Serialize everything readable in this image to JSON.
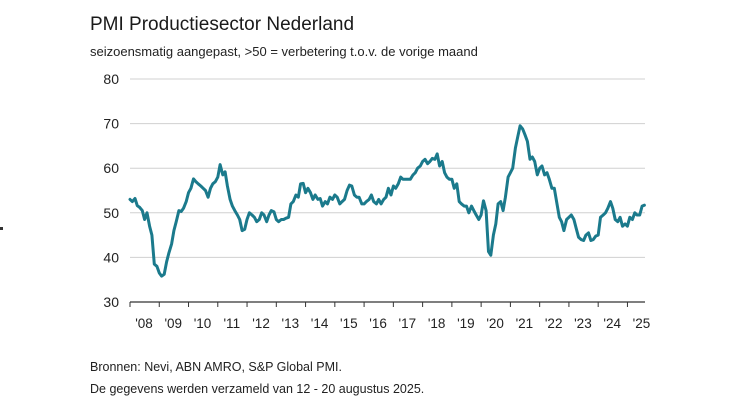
{
  "header": {
    "title": "PMI Productiesector Nederland",
    "subtitle": "seizoensmatig aangepast, >50 = verbetering t.o.v. de vorige maand"
  },
  "footer": {
    "sources": "Bronnen: Nevi, ABN AMRO, S&P Global PMI.",
    "collected": "De gegevens werden verzameld van 12 - 20  augustus  2025."
  },
  "colors": {
    "line": "#1b7a8c",
    "grid": "#d0d0d0",
    "axis": "#333333"
  },
  "chart_data": {
    "type": "line",
    "title": "PMI Productiesector Nederland",
    "subtitle": "seizoensmatig aangepast, >50 = verbetering t.o.v. de vorige maand",
    "ylim": [
      30,
      80
    ],
    "yticks": [
      30,
      40,
      50,
      60,
      70,
      80
    ],
    "xlim": [
      2008.0,
      2025.6
    ],
    "xticks": [
      {
        "x": 2008,
        "label": "'08"
      },
      {
        "x": 2009,
        "label": "'09"
      },
      {
        "x": 2010,
        "label": "'10"
      },
      {
        "x": 2011,
        "label": "'11"
      },
      {
        "x": 2012,
        "label": "'12"
      },
      {
        "x": 2013,
        "label": "'13"
      },
      {
        "x": 2014,
        "label": "'14"
      },
      {
        "x": 2015,
        "label": "'15"
      },
      {
        "x": 2016,
        "label": "'16"
      },
      {
        "x": 2017,
        "label": "'17"
      },
      {
        "x": 2018,
        "label": "'18"
      },
      {
        "x": 2019,
        "label": "'19"
      },
      {
        "x": 2020,
        "label": "'20"
      },
      {
        "x": 2021,
        "label": "'21"
      },
      {
        "x": 2022,
        "label": "'22"
      },
      {
        "x": 2023,
        "label": "'23"
      },
      {
        "x": 2024,
        "label": "'24"
      },
      {
        "x": 2025,
        "label": "'25"
      }
    ],
    "grid": true,
    "series": [
      {
        "points": [
          [
            2008.0,
            53.0
          ],
          [
            2008.08,
            52.5
          ],
          [
            2008.17,
            53.2
          ],
          [
            2008.25,
            51.6
          ],
          [
            2008.33,
            51.2
          ],
          [
            2008.42,
            50.5
          ],
          [
            2008.5,
            48.5
          ],
          [
            2008.58,
            50.0
          ],
          [
            2008.67,
            47.0
          ],
          [
            2008.75,
            45.0
          ],
          [
            2008.83,
            38.5
          ],
          [
            2008.92,
            38.0
          ],
          [
            2009.0,
            36.5
          ],
          [
            2009.08,
            35.8
          ],
          [
            2009.17,
            36.2
          ],
          [
            2009.25,
            39.0
          ],
          [
            2009.33,
            41.0
          ],
          [
            2009.42,
            43.0
          ],
          [
            2009.5,
            46.0
          ],
          [
            2009.58,
            48.0
          ],
          [
            2009.67,
            50.5
          ],
          [
            2009.75,
            50.3
          ],
          [
            2009.83,
            51.0
          ],
          [
            2009.92,
            52.5
          ],
          [
            2010.0,
            54.5
          ],
          [
            2010.08,
            55.5
          ],
          [
            2010.17,
            57.6
          ],
          [
            2010.25,
            57.0
          ],
          [
            2010.33,
            56.5
          ],
          [
            2010.42,
            56.0
          ],
          [
            2010.5,
            55.5
          ],
          [
            2010.58,
            55.0
          ],
          [
            2010.67,
            53.5
          ],
          [
            2010.75,
            55.5
          ],
          [
            2010.83,
            56.5
          ],
          [
            2010.92,
            57.0
          ],
          [
            2011.0,
            58.0
          ],
          [
            2011.08,
            60.8
          ],
          [
            2011.17,
            58.5
          ],
          [
            2011.25,
            59.2
          ],
          [
            2011.33,
            56.0
          ],
          [
            2011.42,
            53.0
          ],
          [
            2011.5,
            51.5
          ],
          [
            2011.58,
            50.5
          ],
          [
            2011.67,
            49.5
          ],
          [
            2011.75,
            48.5
          ],
          [
            2011.83,
            46.0
          ],
          [
            2011.92,
            46.3
          ],
          [
            2012.0,
            48.5
          ],
          [
            2012.08,
            50.0
          ],
          [
            2012.17,
            49.5
          ],
          [
            2012.25,
            49.0
          ],
          [
            2012.33,
            48.0
          ],
          [
            2012.42,
            48.5
          ],
          [
            2012.5,
            50.0
          ],
          [
            2012.58,
            49.5
          ],
          [
            2012.67,
            48.0
          ],
          [
            2012.75,
            49.5
          ],
          [
            2012.83,
            50.5
          ],
          [
            2012.92,
            50.2
          ],
          [
            2013.0,
            48.5
          ],
          [
            2013.08,
            48.0
          ],
          [
            2013.17,
            48.5
          ],
          [
            2013.25,
            48.5
          ],
          [
            2013.33,
            48.8
          ],
          [
            2013.42,
            49.0
          ],
          [
            2013.5,
            52.0
          ],
          [
            2013.58,
            52.5
          ],
          [
            2013.67,
            54.0
          ],
          [
            2013.75,
            53.5
          ],
          [
            2013.83,
            56.5
          ],
          [
            2013.92,
            56.6
          ],
          [
            2014.0,
            54.5
          ],
          [
            2014.08,
            55.5
          ],
          [
            2014.17,
            54.5
          ],
          [
            2014.25,
            53.0
          ],
          [
            2014.33,
            54.0
          ],
          [
            2014.42,
            53.0
          ],
          [
            2014.5,
            53.2
          ],
          [
            2014.58,
            51.5
          ],
          [
            2014.67,
            52.5
          ],
          [
            2014.75,
            52.0
          ],
          [
            2014.83,
            53.5
          ],
          [
            2014.92,
            53.0
          ],
          [
            2015.0,
            54.0
          ],
          [
            2015.08,
            53.5
          ],
          [
            2015.17,
            52.0
          ],
          [
            2015.25,
            52.5
          ],
          [
            2015.33,
            53.0
          ],
          [
            2015.42,
            55.0
          ],
          [
            2015.5,
            56.2
          ],
          [
            2015.58,
            56.0
          ],
          [
            2015.67,
            54.0
          ],
          [
            2015.75,
            53.5
          ],
          [
            2015.83,
            53.5
          ],
          [
            2015.92,
            52.0
          ],
          [
            2016.0,
            52.0
          ],
          [
            2016.08,
            52.5
          ],
          [
            2016.17,
            53.0
          ],
          [
            2016.25,
            54.0
          ],
          [
            2016.33,
            52.5
          ],
          [
            2016.42,
            52.0
          ],
          [
            2016.5,
            53.0
          ],
          [
            2016.58,
            52.0
          ],
          [
            2016.67,
            53.0
          ],
          [
            2016.75,
            53.5
          ],
          [
            2016.83,
            55.5
          ],
          [
            2016.92,
            54.0
          ],
          [
            2017.0,
            56.0
          ],
          [
            2017.08,
            55.5
          ],
          [
            2017.17,
            56.5
          ],
          [
            2017.25,
            58.0
          ],
          [
            2017.33,
            57.5
          ],
          [
            2017.42,
            57.5
          ],
          [
            2017.5,
            57.5
          ],
          [
            2017.58,
            57.5
          ],
          [
            2017.67,
            58.5
          ],
          [
            2017.75,
            59.0
          ],
          [
            2017.83,
            60.0
          ],
          [
            2017.92,
            60.5
          ],
          [
            2018.0,
            61.5
          ],
          [
            2018.08,
            62.0
          ],
          [
            2018.17,
            61.0
          ],
          [
            2018.25,
            61.5
          ],
          [
            2018.33,
            62.2
          ],
          [
            2018.42,
            62.0
          ],
          [
            2018.5,
            63.2
          ],
          [
            2018.58,
            60.5
          ],
          [
            2018.67,
            61.5
          ],
          [
            2018.75,
            59.0
          ],
          [
            2018.83,
            58.0
          ],
          [
            2018.92,
            57.5
          ],
          [
            2019.0,
            57.5
          ],
          [
            2019.08,
            55.5
          ],
          [
            2019.17,
            56.5
          ],
          [
            2019.25,
            52.5
          ],
          [
            2019.33,
            52.0
          ],
          [
            2019.42,
            51.5
          ],
          [
            2019.5,
            51.5
          ],
          [
            2019.58,
            50.0
          ],
          [
            2019.67,
            51.5
          ],
          [
            2019.75,
            50.5
          ],
          [
            2019.83,
            49.5
          ],
          [
            2019.92,
            48.5
          ],
          [
            2020.0,
            49.5
          ],
          [
            2020.08,
            52.7
          ],
          [
            2020.17,
            50.5
          ],
          [
            2020.25,
            41.3
          ],
          [
            2020.33,
            40.5
          ],
          [
            2020.42,
            45.0
          ],
          [
            2020.5,
            47.5
          ],
          [
            2020.58,
            52.0
          ],
          [
            2020.67,
            52.5
          ],
          [
            2020.75,
            50.5
          ],
          [
            2020.83,
            53.5
          ],
          [
            2020.92,
            58.0
          ],
          [
            2021.0,
            59.0
          ],
          [
            2021.08,
            60.0
          ],
          [
            2021.17,
            64.5
          ],
          [
            2021.25,
            67.0
          ],
          [
            2021.33,
            69.5
          ],
          [
            2021.42,
            68.8
          ],
          [
            2021.5,
            67.5
          ],
          [
            2021.58,
            66.0
          ],
          [
            2021.67,
            62.0
          ],
          [
            2021.75,
            62.5
          ],
          [
            2021.83,
            61.5
          ],
          [
            2021.92,
            58.5
          ],
          [
            2022.0,
            60.0
          ],
          [
            2022.08,
            60.5
          ],
          [
            2022.17,
            58.5
          ],
          [
            2022.25,
            59.0
          ],
          [
            2022.33,
            57.5
          ],
          [
            2022.42,
            55.5
          ],
          [
            2022.5,
            55.5
          ],
          [
            2022.58,
            52.5
          ],
          [
            2022.67,
            49.0
          ],
          [
            2022.75,
            48.0
          ],
          [
            2022.83,
            46.0
          ],
          [
            2022.92,
            48.5
          ],
          [
            2023.0,
            49.0
          ],
          [
            2023.08,
            49.5
          ],
          [
            2023.17,
            48.5
          ],
          [
            2023.25,
            46.5
          ],
          [
            2023.33,
            44.5
          ],
          [
            2023.42,
            44.0
          ],
          [
            2023.5,
            43.8
          ],
          [
            2023.58,
            45.0
          ],
          [
            2023.67,
            45.5
          ],
          [
            2023.75,
            43.8
          ],
          [
            2023.83,
            44.0
          ],
          [
            2023.92,
            44.8
          ],
          [
            2024.0,
            45.0
          ],
          [
            2024.08,
            49.0
          ],
          [
            2024.17,
            49.5
          ],
          [
            2024.25,
            50.0
          ],
          [
            2024.33,
            51.0
          ],
          [
            2024.42,
            52.5
          ],
          [
            2024.5,
            51.0
          ],
          [
            2024.58,
            48.5
          ],
          [
            2024.67,
            48.0
          ],
          [
            2024.75,
            49.0
          ],
          [
            2024.83,
            47.0
          ],
          [
            2024.92,
            47.5
          ],
          [
            2025.0,
            47.0
          ],
          [
            2025.08,
            49.0
          ],
          [
            2025.17,
            48.5
          ],
          [
            2025.25,
            50.0
          ],
          [
            2025.33,
            49.5
          ],
          [
            2025.42,
            49.5
          ],
          [
            2025.5,
            51.5
          ],
          [
            2025.58,
            51.7
          ]
        ]
      }
    ]
  }
}
